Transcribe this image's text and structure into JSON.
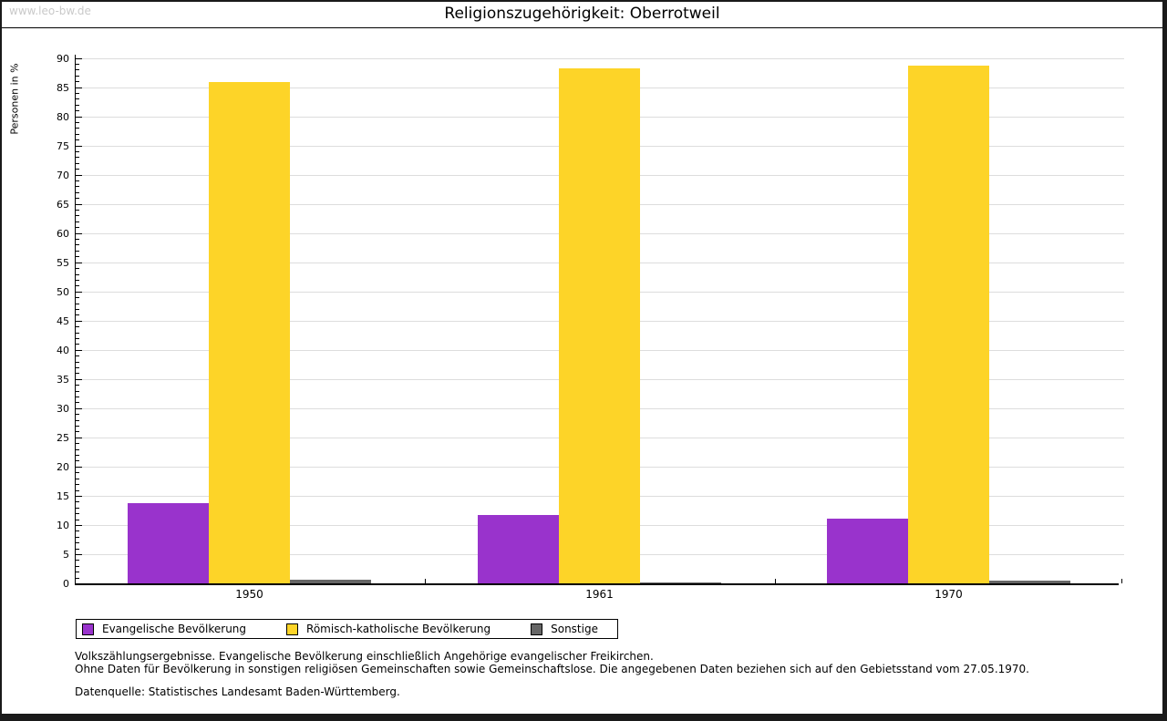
{
  "watermark": "www.leo-bw.de",
  "title": "Religionszugehörigkeit: Oberrotweil",
  "chart_data": {
    "type": "bar",
    "title": "Religionszugehörigkeit: Oberrotweil",
    "xlabel": "",
    "ylabel": "Personen in %",
    "ylim": [
      0,
      90
    ],
    "ytick_step": 5,
    "grid": true,
    "legend_position": "bottom",
    "categories": [
      "1950",
      "1961",
      "1970"
    ],
    "series": [
      {
        "name": "Evangelische Bevölkerung",
        "color": "#9933CC",
        "values": [
          13.7,
          11.7,
          11.1
        ]
      },
      {
        "name": "Römisch-katholische Bevölkerung",
        "color": "#FDD428",
        "values": [
          85.8,
          88.2,
          88.6
        ]
      },
      {
        "name": "Sonstige",
        "color": "#666666",
        "values": [
          0.6,
          0.1,
          0.4
        ]
      }
    ]
  },
  "footer": {
    "line1": "Volkszählungsergebnisse. Evangelische Bevölkerung einschließlich Angehörige evangelischer Freikirchen.",
    "line2": "Ohne Daten für Bevölkerung in sonstigen religiösen Gemeinschaften sowie Gemeinschaftslose. Die angegebenen Daten beziehen sich auf den Gebietsstand vom 27.05.1970.",
    "source": "Datenquelle: Statistisches Landesamt Baden-Württemberg."
  },
  "colors": {
    "evangelisch": "#9933CC",
    "katholisch": "#FDD428",
    "sonstige": "#666666",
    "gridline": "#DDDDDD",
    "axis": "#000000",
    "watermark": "#C9C9C9",
    "frame": "#1A1A1A"
  }
}
